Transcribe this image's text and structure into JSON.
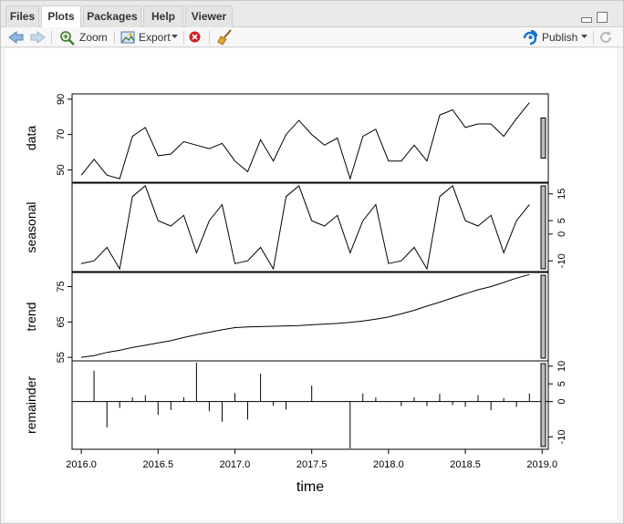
{
  "tabs": [
    {
      "label": "Files",
      "active": false
    },
    {
      "label": "Plots",
      "active": true
    },
    {
      "label": "Packages",
      "active": false
    },
    {
      "label": "Help",
      "active": false
    },
    {
      "label": "Viewer",
      "active": false
    }
  ],
  "toolbar": {
    "zoom_label": "Zoom",
    "export_label": "Export",
    "publish_label": "Publish"
  },
  "icons": {
    "back": "arrow-left-icon",
    "forward": "arrow-right-icon",
    "zoom": "magnifier-icon",
    "export": "export-image-icon",
    "remove": "remove-plot-icon",
    "clear": "broom-icon",
    "publish": "publish-icon",
    "refresh": "refresh-icon"
  },
  "colors": {
    "publish": "#1a73c9",
    "remove": "#cc2222",
    "back_arrow": "#5b9bd5"
  },
  "chart_data": {
    "type": "line",
    "xlabel": "time",
    "x_ticks": [
      "2016.0",
      "2016.5",
      "2017.0",
      "2017.5",
      "2018.0",
      "2018.5",
      "2019.0"
    ],
    "x_range": [
      2015.94,
      2019.04
    ],
    "x": [
      2016.0,
      2016.083,
      2016.167,
      2016.25,
      2016.333,
      2016.417,
      2016.5,
      2016.583,
      2016.667,
      2016.75,
      2016.833,
      2016.917,
      2017.0,
      2017.083,
      2017.167,
      2017.25,
      2017.333,
      2017.417,
      2017.5,
      2017.583,
      2017.667,
      2017.75,
      2017.833,
      2017.917,
      2018.0,
      2018.083,
      2018.167,
      2018.25,
      2018.333,
      2018.417,
      2018.5,
      2018.583,
      2018.667,
      2018.75,
      2018.833,
      2018.917
    ],
    "panels": [
      {
        "label": "data",
        "ticks": [
          "50",
          "70",
          "90"
        ],
        "range": [
          43,
          93
        ],
        "values": [
          47,
          56,
          47,
          45,
          69,
          74,
          58,
          59,
          66,
          64,
          62,
          65,
          55,
          49,
          67,
          55,
          70,
          78,
          70,
          64,
          68,
          45,
          69,
          73,
          55,
          55,
          64,
          55,
          81,
          84,
          74,
          76,
          76,
          69,
          79,
          88
        ]
      },
      {
        "label": "seasonal",
        "ticks": [
          "-10",
          "0",
          "5",
          "15"
        ],
        "range": [
          -14,
          19
        ],
        "values": [
          -11,
          -10,
          -5,
          -13,
          14,
          18,
          5,
          3,
          7,
          -7,
          5,
          11,
          -11,
          -10,
          -5,
          -13,
          14,
          18,
          5,
          3,
          7,
          -7,
          5,
          11,
          -11,
          -10,
          -5,
          -13,
          14,
          18,
          5,
          3,
          7,
          -7,
          5,
          11
        ]
      },
      {
        "label": "trend",
        "ticks": [
          "55",
          "65",
          "75"
        ],
        "range": [
          54,
          79
        ],
        "values": [
          55,
          55.5,
          56.4,
          57,
          57.8,
          58.4,
          59.1,
          59.7,
          60.6,
          61.4,
          62.1,
          62.8,
          63.4,
          63.6,
          63.7,
          63.8,
          63.9,
          64,
          64.2,
          64.4,
          64.6,
          64.9,
          65.3,
          65.8,
          66.4,
          67.3,
          68.3,
          69.5,
          70.6,
          71.8,
          73,
          74.1,
          75,
          76.2,
          77.4,
          78.4
        ]
      },
      {
        "label": "remainder",
        "ticks": [
          "-10",
          "0",
          "5",
          "10"
        ],
        "range": [
          -13.5,
          11.5
        ],
        "values": [
          0,
          8.7,
          -7.3,
          -1.8,
          1.2,
          1.8,
          -3.8,
          -2.4,
          1.2,
          11,
          -2.7,
          -5.7,
          2.4,
          -5.1,
          7.9,
          -1.2,
          -2.3,
          0,
          4.5,
          0,
          0,
          -13.2,
          2.3,
          1.2,
          0,
          -1.3,
          1.2,
          -1.3,
          2.2,
          -1,
          -1.5,
          1.8,
          -2.5,
          1,
          -1.5,
          2.3
        ],
        "style": "h"
      }
    ],
    "scale_bars": "gray bars at right showing relative scale"
  }
}
